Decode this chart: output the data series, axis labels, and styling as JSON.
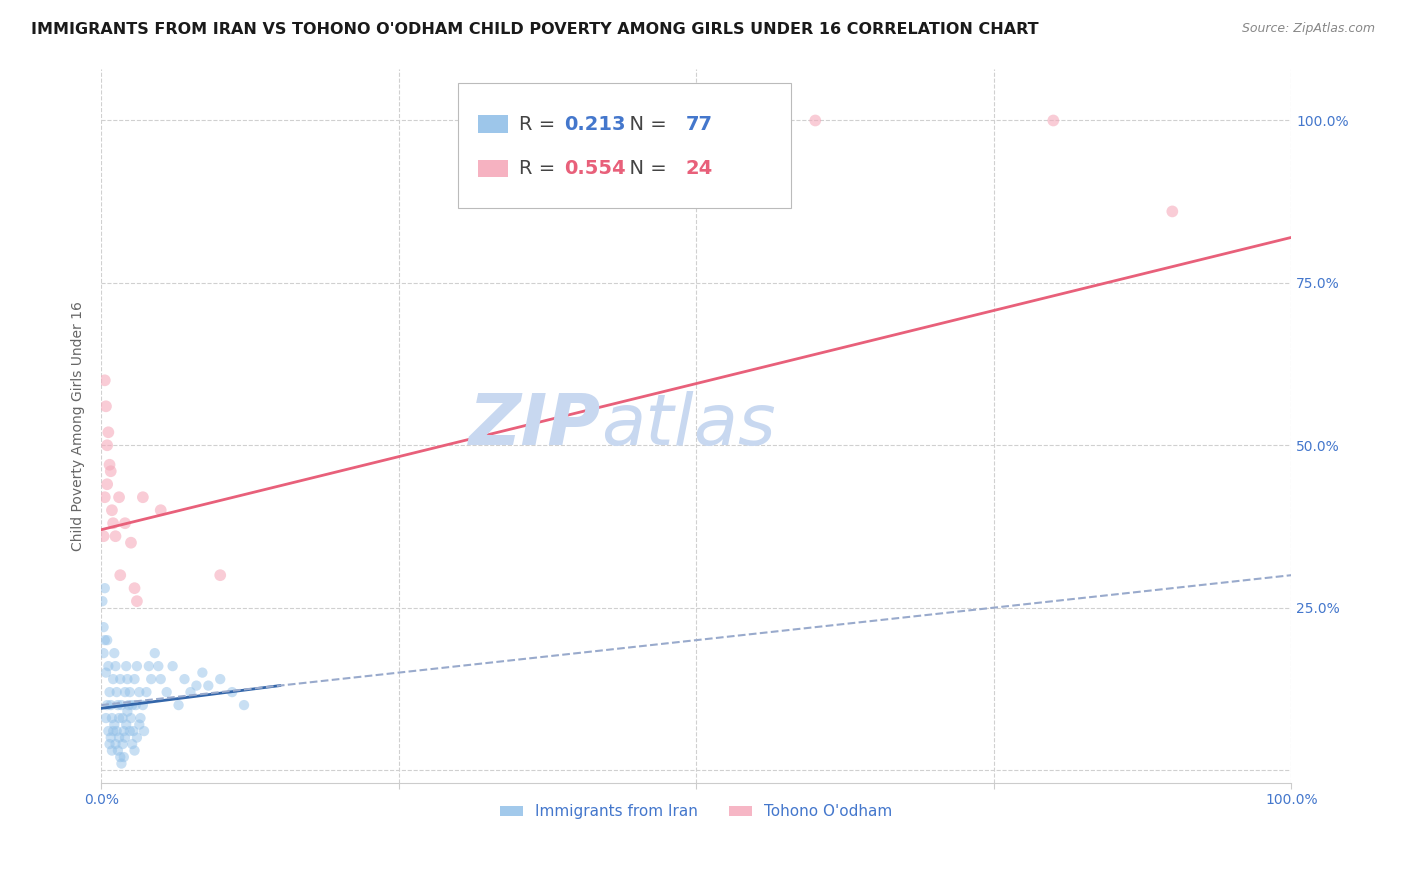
{
  "title": "IMMIGRANTS FROM IRAN VS TOHONO O'ODHAM CHILD POVERTY AMONG GIRLS UNDER 16 CORRELATION CHART",
  "source": "Source: ZipAtlas.com",
  "ylabel": "Child Poverty Among Girls Under 16",
  "watermark_zip": "ZIP",
  "watermark_atlas": "atlas",
  "legend": {
    "blue_r": "0.213",
    "blue_n": "77",
    "pink_r": "0.554",
    "pink_n": "24"
  },
  "blue_scatter": [
    [
      0.001,
      0.26
    ],
    [
      0.002,
      0.22
    ],
    [
      0.002,
      0.18
    ],
    [
      0.003,
      0.28
    ],
    [
      0.003,
      0.2
    ],
    [
      0.004,
      0.15
    ],
    [
      0.004,
      0.08
    ],
    [
      0.005,
      0.2
    ],
    [
      0.005,
      0.1
    ],
    [
      0.006,
      0.16
    ],
    [
      0.006,
      0.06
    ],
    [
      0.007,
      0.12
    ],
    [
      0.007,
      0.04
    ],
    [
      0.008,
      0.1
    ],
    [
      0.008,
      0.05
    ],
    [
      0.009,
      0.08
    ],
    [
      0.009,
      0.03
    ],
    [
      0.01,
      0.14
    ],
    [
      0.01,
      0.06
    ],
    [
      0.011,
      0.18
    ],
    [
      0.011,
      0.07
    ],
    [
      0.012,
      0.16
    ],
    [
      0.012,
      0.04
    ],
    [
      0.013,
      0.12
    ],
    [
      0.013,
      0.06
    ],
    [
      0.014,
      0.1
    ],
    [
      0.014,
      0.03
    ],
    [
      0.015,
      0.08
    ],
    [
      0.015,
      0.05
    ],
    [
      0.016,
      0.14
    ],
    [
      0.016,
      0.02
    ],
    [
      0.017,
      0.1
    ],
    [
      0.017,
      0.01
    ],
    [
      0.018,
      0.08
    ],
    [
      0.018,
      0.04
    ],
    [
      0.019,
      0.06
    ],
    [
      0.019,
      0.02
    ],
    [
      0.02,
      0.12
    ],
    [
      0.02,
      0.05
    ],
    [
      0.021,
      0.16
    ],
    [
      0.021,
      0.07
    ],
    [
      0.022,
      0.14
    ],
    [
      0.022,
      0.09
    ],
    [
      0.023,
      0.1
    ],
    [
      0.024,
      0.12
    ],
    [
      0.024,
      0.06
    ],
    [
      0.025,
      0.08
    ],
    [
      0.026,
      0.1
    ],
    [
      0.026,
      0.04
    ],
    [
      0.027,
      0.06
    ],
    [
      0.028,
      0.14
    ],
    [
      0.028,
      0.03
    ],
    [
      0.029,
      0.1
    ],
    [
      0.03,
      0.16
    ],
    [
      0.03,
      0.05
    ],
    [
      0.032,
      0.12
    ],
    [
      0.032,
      0.07
    ],
    [
      0.033,
      0.08
    ],
    [
      0.035,
      0.1
    ],
    [
      0.036,
      0.06
    ],
    [
      0.038,
      0.12
    ],
    [
      0.04,
      0.16
    ],
    [
      0.042,
      0.14
    ],
    [
      0.045,
      0.18
    ],
    [
      0.048,
      0.16
    ],
    [
      0.05,
      0.14
    ],
    [
      0.055,
      0.12
    ],
    [
      0.06,
      0.16
    ],
    [
      0.065,
      0.1
    ],
    [
      0.07,
      0.14
    ],
    [
      0.075,
      0.12
    ],
    [
      0.08,
      0.13
    ],
    [
      0.085,
      0.15
    ],
    [
      0.09,
      0.13
    ],
    [
      0.1,
      0.14
    ],
    [
      0.11,
      0.12
    ],
    [
      0.12,
      0.1
    ]
  ],
  "pink_scatter": [
    [
      0.002,
      0.36
    ],
    [
      0.003,
      0.42
    ],
    [
      0.003,
      0.6
    ],
    [
      0.004,
      0.56
    ],
    [
      0.005,
      0.5
    ],
    [
      0.005,
      0.44
    ],
    [
      0.006,
      0.52
    ],
    [
      0.007,
      0.47
    ],
    [
      0.008,
      0.46
    ],
    [
      0.009,
      0.4
    ],
    [
      0.01,
      0.38
    ],
    [
      0.012,
      0.36
    ],
    [
      0.015,
      0.42
    ],
    [
      0.016,
      0.3
    ],
    [
      0.02,
      0.38
    ],
    [
      0.025,
      0.35
    ],
    [
      0.028,
      0.28
    ],
    [
      0.03,
      0.26
    ],
    [
      0.035,
      0.42
    ],
    [
      0.05,
      0.4
    ],
    [
      0.1,
      0.3
    ],
    [
      0.6,
      1.0
    ],
    [
      0.8,
      1.0
    ],
    [
      0.9,
      0.86
    ]
  ],
  "blue_line": {
    "x0": 0.0,
    "y0": 0.095,
    "x1": 0.15,
    "y1": 0.13
  },
  "blue_dash_line": {
    "x0": 0.0,
    "y0": 0.1,
    "x1": 1.0,
    "y1": 0.3
  },
  "pink_line": {
    "x0": 0.0,
    "y0": 0.37,
    "x1": 1.0,
    "y1": 0.82
  },
  "xlim": [
    0.0,
    1.0
  ],
  "ylim": [
    -0.02,
    1.08
  ],
  "xticks": [
    0.0,
    0.25,
    0.5,
    0.75,
    1.0
  ],
  "yticks": [
    0.0,
    0.25,
    0.5,
    0.75,
    1.0
  ],
  "xticklabels": [
    "0.0%",
    "",
    "",
    "",
    "100.0%"
  ],
  "yticklabels_right": [
    "",
    "25.0%",
    "50.0%",
    "75.0%",
    "100.0%"
  ],
  "bg_color": "#ffffff",
  "grid_color": "#d0d0d0",
  "blue_color": "#92C0E8",
  "blue_line_color": "#3366AA",
  "blue_dash_color": "#99AACC",
  "pink_color": "#F5AABB",
  "pink_line_color": "#E8607A",
  "title_color": "#1a1a1a",
  "tick_label_color": "#4477CC",
  "watermark_zip_color": "#C8D8F0",
  "watermark_atlas_color": "#C8D8F0",
  "source_color": "#888888",
  "title_fontsize": 11.5,
  "ylabel_fontsize": 10,
  "tick_fontsize": 10,
  "legend_fontsize": 14,
  "source_fontsize": 9,
  "watermark_fontsize_zip": 52,
  "watermark_fontsize_atlas": 52,
  "scatter_size": 55,
  "scatter_alpha": 0.5,
  "bottom_legend_label1": "Immigrants from Iran",
  "bottom_legend_label2": "Tohono O'odham"
}
